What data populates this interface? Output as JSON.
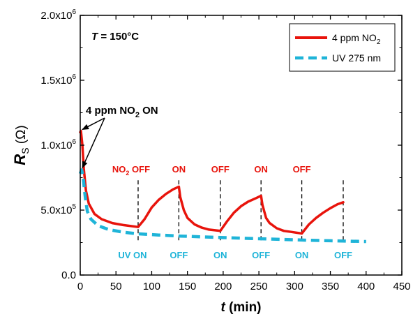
{
  "chart_data": {
    "type": "line",
    "xlabel_var": "t",
    "xlabel_unit": "(min)",
    "ylabel_var": "R",
    "ylabel_sub": "S",
    "ylabel_unit": "(Ω)",
    "xlim": [
      0,
      450
    ],
    "ylim": [
      0,
      2000000
    ],
    "x_ticks": [
      0,
      50,
      100,
      150,
      200,
      250,
      300,
      350,
      400,
      450
    ],
    "y_ticks": [
      {
        "value": 0,
        "mant": "0.0",
        "exp": ""
      },
      {
        "value": 500000,
        "mant": "5.0x10",
        "exp": "5"
      },
      {
        "value": 1000000,
        "mant": "1.0x10",
        "exp": "6"
      },
      {
        "value": 1500000,
        "mant": "1.5x10",
        "exp": "6"
      },
      {
        "value": 2000000,
        "mant": "2.0x10",
        "exp": "6"
      }
    ],
    "grid": false,
    "legend_position": "top-right",
    "temperature_label": {
      "var": "T",
      "text": " = 150°C"
    },
    "series": [
      {
        "name_main": "4 ppm NO",
        "name_sub": "2",
        "color": "#e8140c",
        "style": "solid",
        "x": [
          0,
          1,
          3,
          5,
          8,
          12,
          20,
          30,
          45,
          60,
          81,
          90,
          100,
          110,
          120,
          130,
          138,
          140,
          145,
          150,
          160,
          170,
          180,
          196,
          205,
          215,
          225,
          235,
          245,
          253,
          255,
          260,
          265,
          275,
          285,
          295,
          310,
          320,
          330,
          340,
          350,
          360,
          368
        ],
        "y": [
          1100000,
          1110000,
          1000000,
          820000,
          650000,
          550000,
          470000,
          430000,
          400000,
          385000,
          370000,
          430000,
          520000,
          580000,
          625000,
          660000,
          680000,
          600000,
          500000,
          440000,
          390000,
          365000,
          350000,
          340000,
          410000,
          480000,
          530000,
          565000,
          590000,
          610000,
          540000,
          440000,
          400000,
          360000,
          340000,
          332000,
          320000,
          390000,
          440000,
          480000,
          515000,
          545000,
          560000
        ]
      },
      {
        "name": "UV 275 nm",
        "color": "#1fb4d8",
        "style": "dashed",
        "x": [
          0,
          2,
          4,
          6,
          8,
          10,
          15,
          25,
          40,
          60,
          80,
          110,
          140,
          170,
          200,
          230,
          260,
          290,
          320,
          350,
          380,
          400
        ],
        "y": [
          780000,
          810000,
          760000,
          650000,
          560000,
          490000,
          430000,
          380000,
          350000,
          330000,
          318000,
          308000,
          300000,
          294000,
          288000,
          283000,
          278000,
          273000,
          268000,
          264000,
          260000,
          258000
        ]
      }
    ],
    "switch_lines_x": [
      81,
      138,
      196,
      253,
      310,
      368
    ],
    "annotations_no2": [
      {
        "x": 81,
        "main": "NO",
        "sub": "2",
        "rest": " OFF"
      },
      {
        "x": 138,
        "text": "ON"
      },
      {
        "x": 196,
        "text": "OFF"
      },
      {
        "x": 253,
        "text": "ON"
      },
      {
        "x": 310,
        "text": "OFF"
      }
    ],
    "annotations_uv": [
      {
        "x": 81,
        "text": "UV ON"
      },
      {
        "x": 138,
        "text": "OFF"
      },
      {
        "x": 196,
        "text": "ON"
      },
      {
        "x": 253,
        "text": "OFF"
      },
      {
        "x": 310,
        "text": "ON"
      },
      {
        "x": 368,
        "text": "OFF"
      }
    ],
    "callout": {
      "main": "4 ppm NO",
      "sub": "2",
      "rest": " ON",
      "targets": [
        {
          "x": 2,
          "y": 1110000
        },
        {
          "x": 2,
          "y": 810000
        }
      ]
    }
  }
}
